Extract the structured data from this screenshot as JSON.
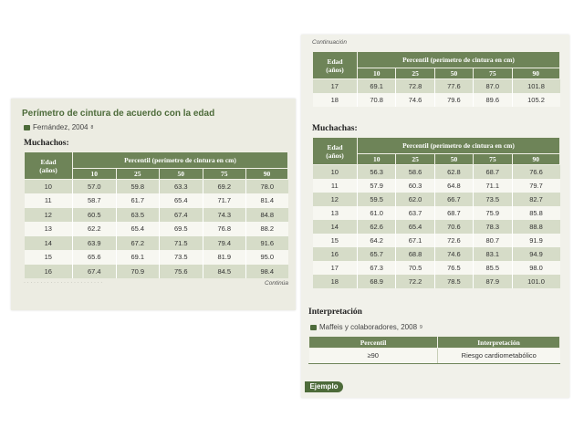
{
  "left": {
    "title": "Perímetro de cintura de acuerdo con la edad",
    "citation": "Fernández, 2004",
    "citation_sup": "8",
    "section": "Muchachos:",
    "header_age": [
      "Edad",
      "(años)"
    ],
    "header_percentile": "Percentil (perímetro de cintura en cm)",
    "percentiles": [
      "10",
      "25",
      "50",
      "75",
      "90"
    ],
    "rows": [
      [
        "10",
        "57.0",
        "59.8",
        "63.3",
        "69.2",
        "78.0"
      ],
      [
        "11",
        "58.7",
        "61.7",
        "65.4",
        "71.7",
        "81.4"
      ],
      [
        "12",
        "60.5",
        "63.5",
        "67.4",
        "74.3",
        "84.8"
      ],
      [
        "13",
        "62.2",
        "65.4",
        "69.5",
        "76.8",
        "88.2"
      ],
      [
        "14",
        "63.9",
        "67.2",
        "71.5",
        "79.4",
        "91.6"
      ],
      [
        "15",
        "65.6",
        "69.1",
        "73.5",
        "81.9",
        "95.0"
      ],
      [
        "16",
        "67.4",
        "70.9",
        "75.6",
        "84.5",
        "98.4"
      ]
    ],
    "continua": "Continúa"
  },
  "right": {
    "continuacion": "Continuación",
    "header_age": [
      "Edad",
      "(años)"
    ],
    "header_percentile": "Percentil (perímetro de cintura en cm)",
    "percentiles": [
      "10",
      "25",
      "50",
      "75",
      "90"
    ],
    "top_rows": [
      [
        "17",
        "69.1",
        "72.8",
        "77.6",
        "87.0",
        "101.8"
      ],
      [
        "18",
        "70.8",
        "74.6",
        "79.6",
        "89.6",
        "105.2"
      ]
    ],
    "section": "Muchachas:",
    "rows": [
      [
        "10",
        "56.3",
        "58.6",
        "62.8",
        "68.7",
        "76.6"
      ],
      [
        "11",
        "57.9",
        "60.3",
        "64.8",
        "71.1",
        "79.7"
      ],
      [
        "12",
        "59.5",
        "62.0",
        "66.7",
        "73.5",
        "82.7"
      ],
      [
        "13",
        "61.0",
        "63.7",
        "68.7",
        "75.9",
        "85.8"
      ],
      [
        "14",
        "62.6",
        "65.4",
        "70.6",
        "78.3",
        "88.8"
      ],
      [
        "15",
        "64.2",
        "67.1",
        "72.6",
        "80.7",
        "91.9"
      ],
      [
        "16",
        "65.7",
        "68.8",
        "74.6",
        "83.1",
        "94.9"
      ],
      [
        "17",
        "67.3",
        "70.5",
        "76.5",
        "85.5",
        "98.0"
      ],
      [
        "18",
        "68.9",
        "72.2",
        "78.5",
        "87.9",
        "101.0"
      ]
    ],
    "interp_title": "Interpretación",
    "interp_citation": "Maffeis y colaboradores, 2008",
    "interp_citation_sup": "9",
    "interp_headers": [
      "Percentil",
      "Interpretación"
    ],
    "interp_row": [
      "≥90",
      "Riesgo cardiometabólico"
    ],
    "ejemplo": "Ejemplo"
  },
  "colors": {
    "header_green": "#6e8458",
    "title_green": "#4d6b3a",
    "row_shade": "#d6dcc8"
  }
}
